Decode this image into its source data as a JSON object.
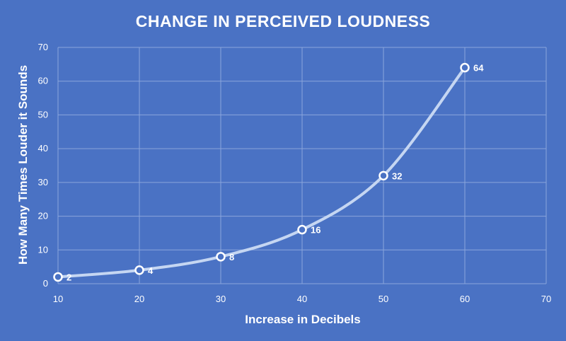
{
  "chart_data": {
    "type": "line",
    "title": "CHANGE IN PERCEIVED LOUDNESS",
    "xlabel": "Increase in Decibels",
    "ylabel": "How Many Times Louder it Sounds",
    "xlim": [
      10,
      70
    ],
    "ylim": [
      0,
      70
    ],
    "x_ticks": [
      "10",
      "20",
      "30",
      "40",
      "50",
      "60",
      "70"
    ],
    "y_ticks": [
      "0",
      "10",
      "20",
      "30",
      "40",
      "50",
      "60",
      "70"
    ],
    "grid": true,
    "smooth": true,
    "series": [
      {
        "x": [
          10,
          20,
          30,
          40,
          50,
          60
        ],
        "values": [
          2,
          4,
          8,
          16,
          32,
          64
        ],
        "data_labels": [
          "2",
          "4",
          "8",
          "16",
          "32",
          "64"
        ]
      }
    ]
  },
  "colors": {
    "background": "#4a72c4",
    "line": "#c5d6f2",
    "marker_fill": "#4a72c4",
    "marker_stroke": "#ffffff",
    "text": "#ffffff"
  }
}
